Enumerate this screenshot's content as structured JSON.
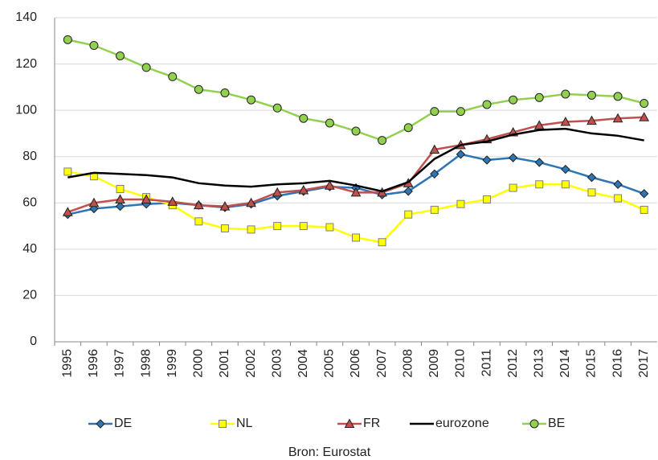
{
  "chart_data": {
    "type": "line",
    "categories": [
      "1995",
      "1996",
      "1997",
      "1998",
      "1999",
      "2000",
      "2001",
      "2002",
      "2003",
      "2004",
      "2005",
      "2006",
      "2007",
      "2008",
      "2009",
      "2010",
      "2011",
      "2012",
      "2013",
      "2014",
      "2015",
      "2016",
      "2017"
    ],
    "series": [
      {
        "name": "DE",
        "color": "#2e75b6",
        "marker": "diamond",
        "values": [
          55,
          57.5,
          58.5,
          59.5,
          60,
          59,
          58,
          59.5,
          63,
          65,
          67,
          66.5,
          63.5,
          65,
          72.5,
          81,
          78.5,
          79.5,
          77.5,
          74.5,
          71,
          68,
          64
        ]
      },
      {
        "name": "NL",
        "color": "#ffff00",
        "marker": "square",
        "values": [
          73.5,
          71.5,
          66,
          62.5,
          59,
          52,
          49,
          48.5,
          50,
          50,
          49.5,
          45,
          43,
          55,
          57,
          59.5,
          61.5,
          66.5,
          68,
          68,
          64.5,
          62,
          57
        ]
      },
      {
        "name": "FR",
        "color": "#c0504d",
        "marker": "triangle",
        "values": [
          56,
          60,
          61.5,
          61.5,
          60.5,
          59,
          58.5,
          60,
          64.5,
          65.5,
          67.5,
          64.5,
          64.5,
          68.5,
          83,
          85,
          87.5,
          90.5,
          93.5,
          95,
          95.5,
          96.5,
          97
        ]
      },
      {
        "name": "eurozone",
        "color": "#000000",
        "marker": "none",
        "values": [
          71,
          73,
          72.5,
          72,
          71,
          68.5,
          67.5,
          67,
          68,
          68.5,
          69.5,
          67.5,
          65,
          69,
          79,
          85,
          86.5,
          89.5,
          91.5,
          92,
          90,
          89,
          87
        ]
      },
      {
        "name": "BE",
        "color": "#92d050",
        "marker": "circle",
        "values": [
          130.5,
          128,
          123.5,
          118.5,
          114.5,
          109,
          107.5,
          104.5,
          101,
          96.5,
          94.5,
          91,
          87,
          92.5,
          99.5,
          99.5,
          102.5,
          104.5,
          105.5,
          107,
          106.5,
          106,
          103
        ]
      }
    ],
    "ylim": [
      0,
      140
    ],
    "yticks": [
      0,
      20,
      40,
      60,
      80,
      100,
      120,
      140
    ],
    "grid": true,
    "legend": "bottom",
    "source": "Bron: Eurostat"
  }
}
